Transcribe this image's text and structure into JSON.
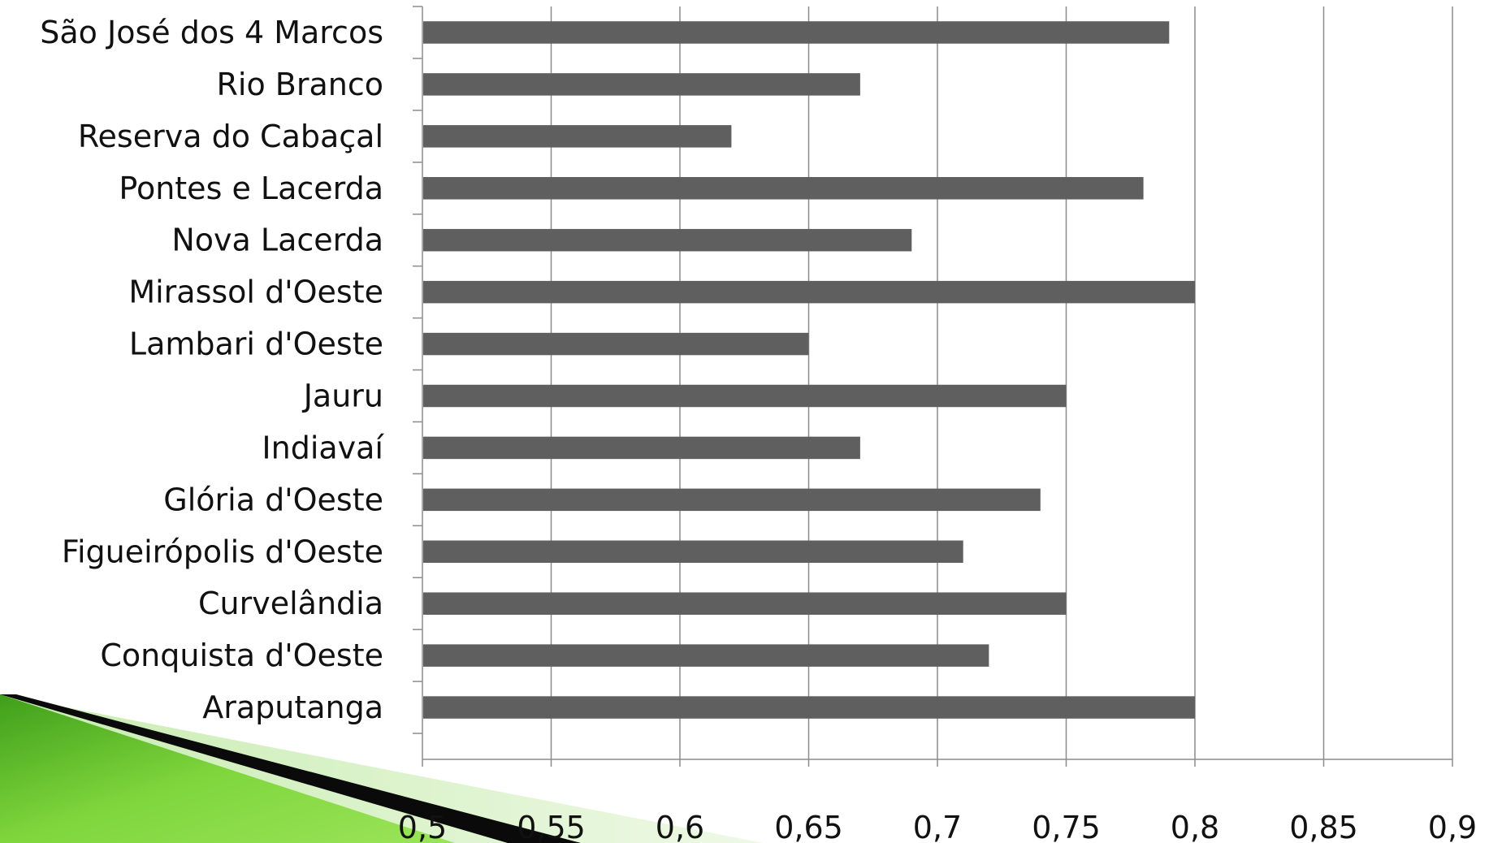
{
  "chart_data": {
    "type": "bar",
    "orientation": "horizontal",
    "categories": [
      "Araputanga",
      "Conquista d'Oeste",
      "Curvelândia",
      "Figueirópolis d'Oeste",
      "Glória d'Oeste",
      "Indiavaí",
      "Jauru",
      "Lambari d'Oeste",
      "Mirassol d'Oeste",
      "Nova Lacerda",
      "Pontes e Lacerda",
      "Reserva do Cabaçal",
      "Rio Branco",
      "São José dos 4 Marcos"
    ],
    "values": [
      0.8,
      0.72,
      0.75,
      0.71,
      0.74,
      0.67,
      0.75,
      0.65,
      0.8,
      0.69,
      0.78,
      0.62,
      0.67,
      0.79
    ],
    "xlim": [
      0.5,
      0.9
    ],
    "x_ticks": [
      "0,5",
      "0,55",
      "0,6",
      "0,65",
      "0,7",
      "0,75",
      "0,8",
      "0,85",
      "0,9"
    ],
    "title": "",
    "xlabel": "",
    "ylabel": "",
    "grid": "vertical",
    "legend": "none",
    "bar_color": "#5f5f5f",
    "grid_color": "#8c8c8c"
  }
}
